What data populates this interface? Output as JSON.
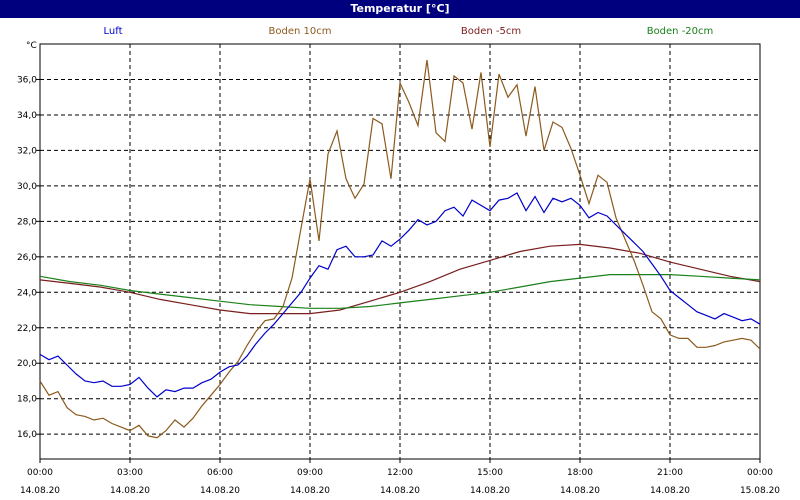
{
  "window": {
    "title": "Temperatur [°C]"
  },
  "chart_data": {
    "type": "line",
    "title": "Temperatur [°C]",
    "ylabel": "°C",
    "ylim": [
      14.6,
      38.0
    ],
    "xlim": [
      0,
      24
    ],
    "grid": true,
    "y_ticks": [
      "16,0",
      "18,0",
      "20,0",
      "22,0",
      "24,0",
      "26,0",
      "28,0",
      "30,0",
      "32,0",
      "34,0",
      "36,0"
    ],
    "y_tick_values": [
      16,
      18,
      20,
      22,
      24,
      26,
      28,
      30,
      32,
      34,
      36
    ],
    "x_ticks": [
      {
        "time": "00:00",
        "date": "14.08.20",
        "h": 0
      },
      {
        "time": "03:00",
        "date": "14.08.20",
        "h": 3
      },
      {
        "time": "06:00",
        "date": "14.08.20",
        "h": 6
      },
      {
        "time": "09:00",
        "date": "14.08.20",
        "h": 9
      },
      {
        "time": "12:00",
        "date": "14.08.20",
        "h": 12
      },
      {
        "time": "15:00",
        "date": "14.08.20",
        "h": 15
      },
      {
        "time": "18:00",
        "date": "14.08.20",
        "h": 18
      },
      {
        "time": "21:00",
        "date": "14.08.20",
        "h": 21
      },
      {
        "time": "00:00",
        "date": "15.08.20",
        "h": 24
      }
    ],
    "series": [
      {
        "name": "Luft",
        "color": "#0000cc",
        "x": [
          0,
          0.3,
          0.6,
          0.9,
          1.2,
          1.5,
          1.8,
          2.1,
          2.4,
          2.7,
          3.0,
          3.3,
          3.6,
          3.9,
          4.2,
          4.5,
          4.8,
          5.1,
          5.4,
          5.7,
          6.0,
          6.3,
          6.6,
          6.9,
          7.2,
          7.5,
          7.8,
          8.1,
          8.4,
          8.7,
          9.0,
          9.3,
          9.6,
          9.9,
          10.2,
          10.5,
          10.8,
          11.1,
          11.4,
          11.7,
          12.0,
          12.3,
          12.6,
          12.9,
          13.2,
          13.5,
          13.8,
          14.1,
          14.4,
          14.7,
          15.0,
          15.3,
          15.6,
          15.9,
          16.2,
          16.5,
          16.8,
          17.1,
          17.4,
          17.7,
          18.0,
          18.3,
          18.6,
          18.9,
          19.2,
          19.5,
          19.8,
          20.1,
          20.4,
          20.7,
          21.0,
          21.3,
          21.6,
          21.9,
          22.2,
          22.5,
          22.8,
          23.1,
          23.4,
          23.7,
          24.0
        ],
        "values": [
          20.5,
          20.2,
          20.4,
          19.9,
          19.4,
          19.0,
          18.9,
          19.0,
          18.7,
          18.7,
          18.8,
          19.2,
          18.6,
          18.1,
          18.5,
          18.4,
          18.6,
          18.6,
          18.9,
          19.1,
          19.5,
          19.8,
          19.9,
          20.4,
          21.1,
          21.7,
          22.2,
          22.8,
          23.4,
          24.0,
          24.8,
          25.5,
          25.3,
          26.4,
          26.6,
          26.0,
          26.0,
          26.1,
          26.9,
          26.6,
          27.0,
          27.5,
          28.1,
          27.8,
          28.0,
          28.6,
          28.8,
          28.3,
          29.2,
          28.9,
          28.6,
          29.2,
          29.3,
          29.6,
          28.6,
          29.4,
          28.5,
          29.3,
          29.1,
          29.3,
          28.9,
          28.2,
          28.5,
          28.3,
          27.8,
          27.3,
          26.8,
          26.3,
          25.6,
          24.9,
          24.1,
          23.7,
          23.3,
          22.9,
          22.7,
          22.5,
          22.8,
          22.6,
          22.4,
          22.5,
          22.2
        ]
      },
      {
        "name": "Boden 10cm",
        "color": "#8c5a1e",
        "x": [
          0,
          0.3,
          0.6,
          0.9,
          1.2,
          1.5,
          1.8,
          2.1,
          2.4,
          2.7,
          3.0,
          3.3,
          3.6,
          3.9,
          4.2,
          4.5,
          4.8,
          5.1,
          5.4,
          5.7,
          6.0,
          6.3,
          6.6,
          6.9,
          7.2,
          7.5,
          7.8,
          8.1,
          8.4,
          8.7,
          9.0,
          9.3,
          9.6,
          9.9,
          10.2,
          10.5,
          10.8,
          11.1,
          11.4,
          11.7,
          12.0,
          12.3,
          12.6,
          12.9,
          13.2,
          13.5,
          13.8,
          14.1,
          14.4,
          14.7,
          15.0,
          15.3,
          15.6,
          15.9,
          16.2,
          16.5,
          16.8,
          17.1,
          17.4,
          17.7,
          18.0,
          18.3,
          18.6,
          18.9,
          19.2,
          19.5,
          19.8,
          20.1,
          20.4,
          20.7,
          21.0,
          21.3,
          21.6,
          21.9,
          22.2,
          22.5,
          22.8,
          23.1,
          23.4,
          23.7,
          24.0
        ],
        "values": [
          19.0,
          18.2,
          18.4,
          17.5,
          17.1,
          17.0,
          16.8,
          16.9,
          16.6,
          16.4,
          16.2,
          16.5,
          15.9,
          15.8,
          16.2,
          16.8,
          16.4,
          16.9,
          17.6,
          18.2,
          18.8,
          19.5,
          20.1,
          21.0,
          21.8,
          22.4,
          22.5,
          23.2,
          24.8,
          27.6,
          30.4,
          26.9,
          31.8,
          33.1,
          30.4,
          29.3,
          30.1,
          33.8,
          33.5,
          30.4,
          35.8,
          34.7,
          33.4,
          37.1,
          33.0,
          32.5,
          36.2,
          35.8,
          33.2,
          36.4,
          32.2,
          36.3,
          35.0,
          35.7,
          32.8,
          35.6,
          32.0,
          33.6,
          33.3,
          32.1,
          30.6,
          29.0,
          30.6,
          30.2,
          28.2,
          27.0,
          25.8,
          24.4,
          22.9,
          22.5,
          21.6,
          21.4,
          21.4,
          20.9,
          20.9,
          21.0,
          21.2,
          21.3,
          21.4,
          21.3,
          20.8
        ]
      },
      {
        "name": "Boden -5cm",
        "color": "#7a1e1e",
        "x": [
          0,
          1,
          2,
          3,
          4,
          5,
          6,
          7,
          8,
          9,
          10,
          11,
          12,
          13,
          14,
          15,
          16,
          17,
          18,
          19,
          20,
          21,
          22,
          23,
          24
        ],
        "values": [
          24.7,
          24.5,
          24.3,
          24.0,
          23.6,
          23.3,
          23.0,
          22.8,
          22.8,
          22.8,
          23.0,
          23.5,
          24.0,
          24.6,
          25.3,
          25.8,
          26.3,
          26.6,
          26.7,
          26.5,
          26.2,
          25.7,
          25.3,
          24.9,
          24.6
        ]
      },
      {
        "name": "Boden -20cm",
        "color": "#1a801a",
        "x": [
          0,
          1,
          2,
          3,
          4,
          5,
          6,
          7,
          8,
          9,
          10,
          11,
          12,
          13,
          14,
          15,
          16,
          17,
          18,
          19,
          20,
          21,
          22,
          23,
          24
        ],
        "values": [
          24.9,
          24.6,
          24.4,
          24.1,
          23.9,
          23.7,
          23.5,
          23.3,
          23.2,
          23.1,
          23.1,
          23.2,
          23.4,
          23.6,
          23.8,
          24.0,
          24.3,
          24.6,
          24.8,
          25.0,
          25.0,
          25.0,
          24.9,
          24.8,
          24.7
        ]
      }
    ]
  }
}
